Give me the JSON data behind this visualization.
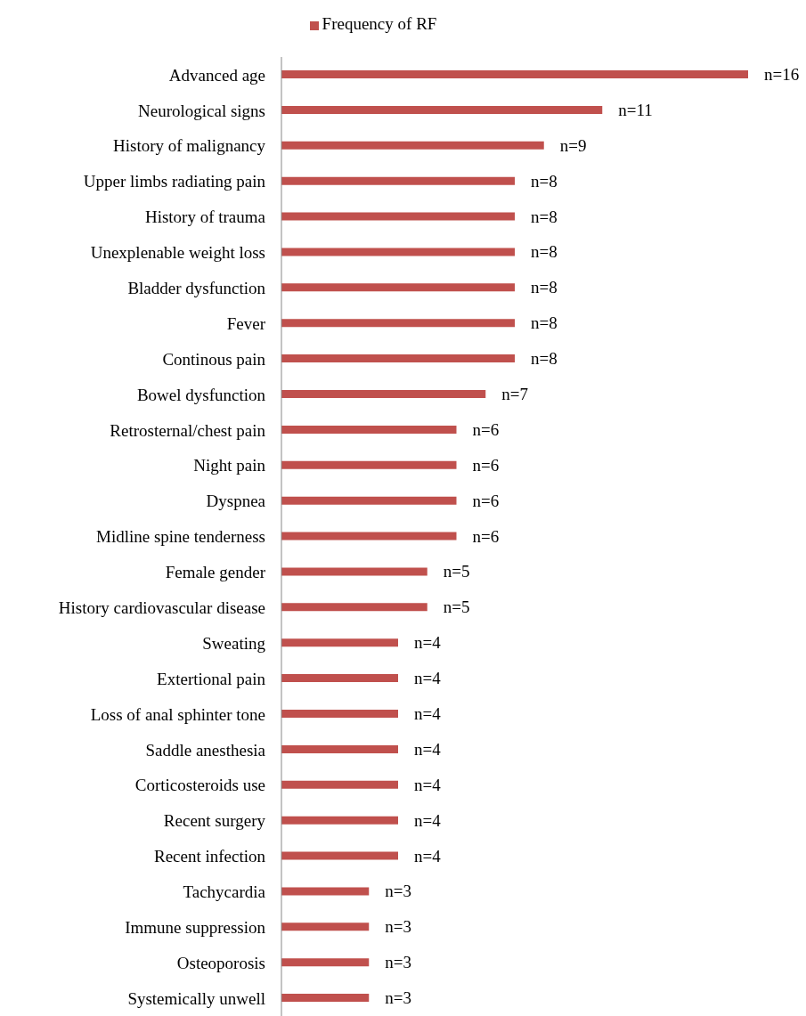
{
  "chart_data": {
    "type": "bar",
    "orientation": "horizontal",
    "legend": "top",
    "categories": [
      "Advanced age",
      "Neurological signs",
      "History of malignancy",
      "Upper limbs radiating pain",
      "History of trauma",
      "Unexplenable weight loss",
      "Bladder dysfunction",
      "Fever",
      "Continous pain",
      "Bowel dysfunction",
      "Retrosternal/chest pain",
      "Night pain",
      "Dyspnea",
      "Midline spine tenderness",
      "Female gender",
      "History cardiovascular disease",
      "Sweating",
      "Extertional pain",
      "Loss of anal sphinter tone",
      "Saddle anesthesia",
      "Corticosteroids use",
      "Recent surgery",
      "Recent infection",
      "Tachycardia",
      "Immune suppression",
      "Osteoporosis",
      "Systemically unwell"
    ],
    "series": [
      {
        "name": "Frequency of RF",
        "color": "#c0504d",
        "values": [
          16,
          11,
          9,
          8,
          8,
          8,
          8,
          8,
          8,
          7,
          6,
          6,
          6,
          6,
          5,
          5,
          4,
          4,
          4,
          4,
          4,
          4,
          4,
          3,
          3,
          3,
          3
        ],
        "value_labels": [
          "n=16",
          "n=11",
          "n=9",
          "n=8",
          "n=8",
          "n=8",
          "n=8",
          "n=8",
          "n=8",
          "n=7",
          "n=6",
          "n=6",
          "n=6",
          "n=6",
          "n=5",
          "n=5",
          "n=4",
          "n=4",
          "n=4",
          "n=4",
          "n=4",
          "n=4",
          "n=4",
          "n=3",
          "n=3",
          "n=3",
          "n=3"
        ]
      }
    ]
  }
}
